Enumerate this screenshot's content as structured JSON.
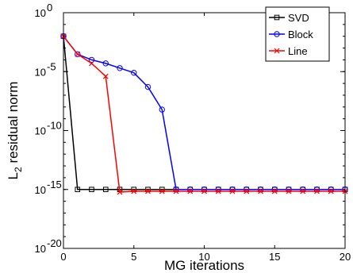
{
  "chart_data": {
    "type": "line",
    "xlabel": "MG iterations",
    "ylabel": "L",
    "ylabel_subscript": "2",
    "ylabel_suffix": " residual norm",
    "xlim": [
      0,
      20
    ],
    "ylim_log10": [
      -20,
      0
    ],
    "yscale": "log",
    "x_ticks": [
      0,
      5,
      10,
      15,
      20
    ],
    "x_tick_labels": [
      "0",
      "5",
      "10",
      "15",
      "20"
    ],
    "y_ticks_log10": [
      0,
      -5,
      -10,
      -15,
      -20
    ],
    "y_tick_base": "10",
    "y_tick_exponents": [
      "0",
      "-5",
      "-10",
      "-15",
      "-20"
    ],
    "legend_position": "top-right",
    "series": [
      {
        "name": "SVD",
        "color": "#000000",
        "marker": "square",
        "x": [
          0,
          1,
          2,
          3,
          4,
          5,
          6,
          7,
          8,
          9,
          10,
          11,
          12,
          13,
          14,
          15,
          16,
          17,
          18,
          19,
          20
        ],
        "y": [
          0.01,
          1e-15,
          1e-15,
          1e-15,
          1e-15,
          1e-15,
          1e-15,
          1e-15,
          1e-15,
          1e-15,
          1e-15,
          1e-15,
          1e-15,
          1e-15,
          1e-15,
          1e-15,
          1e-15,
          1e-15,
          1e-15,
          1e-15,
          1e-15
        ]
      },
      {
        "name": "Block",
        "color": "#0000ff",
        "marker": "circle",
        "x": [
          0,
          1,
          2,
          3,
          4,
          5,
          6,
          7,
          8,
          9,
          10,
          11,
          12,
          13,
          14,
          15,
          16,
          17,
          18,
          19,
          20
        ],
        "y": [
          0.01,
          0.0003,
          0.0001,
          5e-05,
          2e-05,
          8e-06,
          5e-07,
          6e-09,
          1e-15,
          1e-15,
          1e-15,
          1e-15,
          1e-15,
          1e-15,
          1e-15,
          1e-15,
          1e-15,
          1e-15,
          1e-15,
          1e-15,
          1e-15
        ]
      },
      {
        "name": "Line",
        "color": "#ff0000",
        "marker": "x",
        "x": [
          0,
          1,
          2,
          3,
          4,
          5,
          6,
          7,
          8,
          9,
          10,
          11,
          12,
          13,
          14,
          15,
          16,
          17,
          18,
          19,
          20
        ],
        "y": [
          0.01,
          0.0003,
          5e-05,
          4e-06,
          6e-16,
          7e-16,
          7e-16,
          7e-16,
          7e-16,
          7e-16,
          7e-16,
          7e-16,
          7e-16,
          7e-16,
          7e-16,
          7e-16,
          7e-16,
          7e-16,
          7e-16,
          7e-16,
          7e-16
        ]
      }
    ]
  }
}
